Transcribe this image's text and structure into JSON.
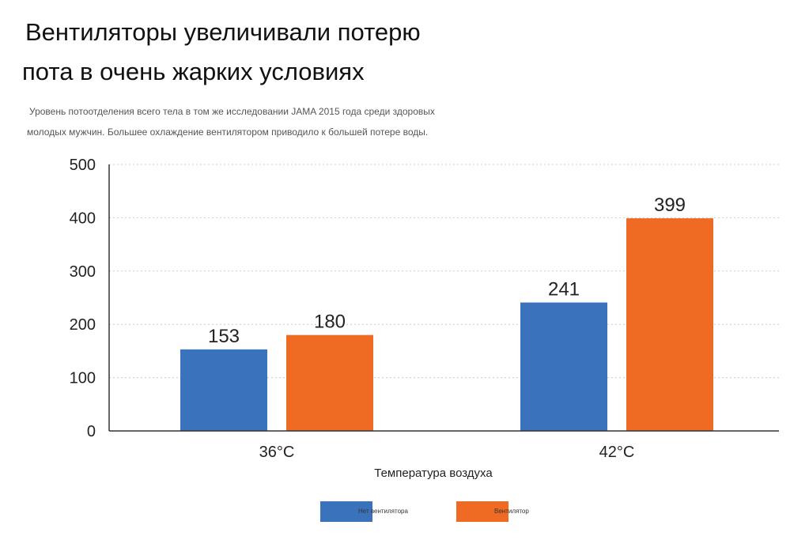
{
  "title_lines": [
    "Вентиляторы увеличивали потерю",
    "пота в очень жарких условиях"
  ],
  "subtitle_lines": [
    "Уровень потоотделения всего тела в том же исследовании JAMA 2015 года среди здоровых",
    "молодых мужчин. Большее охлаждение вентилятором приводило к большей потере воды."
  ],
  "chart_data": {
    "type": "bar",
    "title": "Вентиляторы увеличивали потерю пота в очень жарких условиях",
    "subtitle": "Уровень потоотделения всего тела в том же исследовании JAMA 2015 года среди здоровых молодых мужчин. Большее охлаждение вентилятором приводило к большей потере воды.",
    "categories": [
      "36°C",
      "42°C"
    ],
    "series": [
      {
        "name": "Нет вентилятора",
        "values": [
          153,
          241
        ],
        "color": "#3a72bb"
      },
      {
        "name": "Вентилятор",
        "values": [
          180,
          399
        ],
        "color": "#ef6b24"
      }
    ],
    "xlabel": "Температура воздуха",
    "ylabel": "",
    "ylim": [
      0,
      500
    ],
    "yticks": [
      0,
      100,
      200,
      300,
      400,
      500
    ],
    "grid": true,
    "legend": "bottom"
  }
}
